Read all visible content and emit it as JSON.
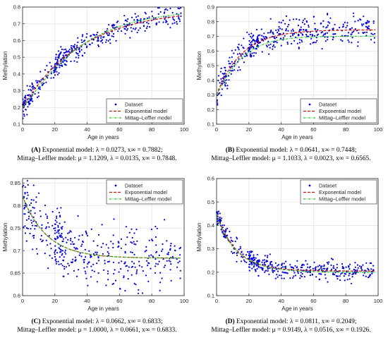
{
  "figure": {
    "common": {
      "xlabel": "Age in years",
      "ylabel": "Methylation",
      "legend": [
        "Dataset",
        "Exponential model",
        "Mittag–Leffler model"
      ],
      "colors": {
        "dataset": "#0000dd",
        "exponential": "#cc1100",
        "mittag_leffler": "#22cc22"
      }
    }
  },
  "chart_data": [
    {
      "panel": "A",
      "type": "scatter",
      "xlabel": "Age in years",
      "ylabel": "Methylation",
      "xlim": [
        0,
        100
      ],
      "ylim": [
        0.1,
        0.8
      ],
      "xticks": [
        0,
        20,
        40,
        60,
        80,
        100
      ],
      "yticks": [
        0.1,
        0.2,
        0.3,
        0.4,
        0.5,
        0.6,
        0.7,
        0.8
      ],
      "grid": true,
      "legend_position": "bottom-right",
      "series": [
        {
          "name": "Dataset",
          "type": "scatter"
        },
        {
          "name": "Exponential model",
          "type": "line"
        },
        {
          "name": "Mittag–Leffler model",
          "type": "line"
        }
      ],
      "params": {
        "lambda": 0.0273,
        "x_inf": 0.7882,
        "ml_mu": 1.1209,
        "ml_lambda": 0.0135,
        "ml_x_inf": 0.7848,
        "x0": 0.2,
        "spread": 0.035
      },
      "caption": {
        "label": "(A)",
        "line1_text": " Exponential model: λ = 0.0273, x∞ = 0.7882;",
        "line2_text": "Mittag–Leffler model: μ = 1.1209, λ = 0.0135, x∞ = 0.7848."
      }
    },
    {
      "panel": "B",
      "type": "scatter",
      "xlabel": "Age in years",
      "ylabel": "Methylation",
      "xlim": [
        0,
        100
      ],
      "ylim": [
        0.1,
        0.9
      ],
      "xticks": [
        0,
        20,
        40,
        60,
        80,
        100
      ],
      "yticks": [
        0.1,
        0.2,
        0.3,
        0.4,
        0.5,
        0.6,
        0.7,
        0.8,
        0.9
      ],
      "grid": true,
      "legend_position": "bottom-right",
      "series": [
        {
          "name": "Dataset",
          "type": "scatter"
        },
        {
          "name": "Exponential model",
          "type": "line"
        },
        {
          "name": "Mittag–Leffler model",
          "type": "line"
        }
      ],
      "params": {
        "lambda": 0.0641,
        "x_inf": 0.7448,
        "ml_mu": 1.1033,
        "ml_lambda": 0.0023,
        "ml_x_inf": 0.6565,
        "x0": 0.3,
        "spread": 0.05
      },
      "caption": {
        "label": "(B)",
        "line1_text": " Exponential model: λ = 0.0641, x∞ = 0.7448;",
        "line2_text": "Mittag–Leffler model: μ = 1.1033, λ = 0.0023, x∞ = 0.6565."
      }
    },
    {
      "panel": "C",
      "type": "scatter",
      "xlabel": "Age in years",
      "ylabel": "Methylation",
      "xlim": [
        0,
        100
      ],
      "ylim": [
        0.6,
        0.86
      ],
      "xticks": [
        0,
        20,
        40,
        60,
        80,
        100
      ],
      "yticks": [
        0.6,
        0.65,
        0.7,
        0.75,
        0.8,
        0.85
      ],
      "grid": true,
      "legend_position": "top-right",
      "series": [
        {
          "name": "Dataset",
          "type": "scatter"
        },
        {
          "name": "Exponential model",
          "type": "line"
        },
        {
          "name": "Mittag–Leffler model",
          "type": "line"
        }
      ],
      "params": {
        "lambda": 0.0662,
        "x_inf": 0.6833,
        "ml_mu": 1.0,
        "ml_lambda": 0.0661,
        "ml_x_inf": 0.6833,
        "x0": 0.82,
        "spread": 0.035
      },
      "caption": {
        "label": "(C)",
        "line1_text": " Exponential model: λ = 0.0662, x∞ = 0.6833;",
        "line2_text": "Mittag–Leffler model: μ = 1.0000, λ = 0.0661, x∞ = 0.6833."
      }
    },
    {
      "panel": "D",
      "type": "scatter",
      "xlabel": "Age in years",
      "ylabel": "Methylation",
      "xlim": [
        0,
        100
      ],
      "ylim": [
        0.1,
        0.6
      ],
      "xticks": [
        0,
        20,
        40,
        60,
        80,
        100
      ],
      "yticks": [
        0.1,
        0.2,
        0.3,
        0.4,
        0.5,
        0.6
      ],
      "grid": true,
      "legend_position": "top-right",
      "series": [
        {
          "name": "Dataset",
          "type": "scatter"
        },
        {
          "name": "Exponential model",
          "type": "line"
        },
        {
          "name": "Mittag–Leffler model",
          "type": "line"
        }
      ],
      "params": {
        "lambda": 0.0811,
        "x_inf": 0.2049,
        "ml_mu": 0.9149,
        "ml_lambda": 0.0516,
        "ml_x_inf": 0.1926,
        "x0": 0.45,
        "spread": 0.02
      },
      "caption": {
        "label": "(D)",
        "line1_text": " Exponential model: λ = 0.0811, x∞ = 0.2049;",
        "line2_text": "Mittag–Leffler model: μ = 0.9149, λ = 0.0516, x∞ = 0.1926."
      }
    }
  ]
}
